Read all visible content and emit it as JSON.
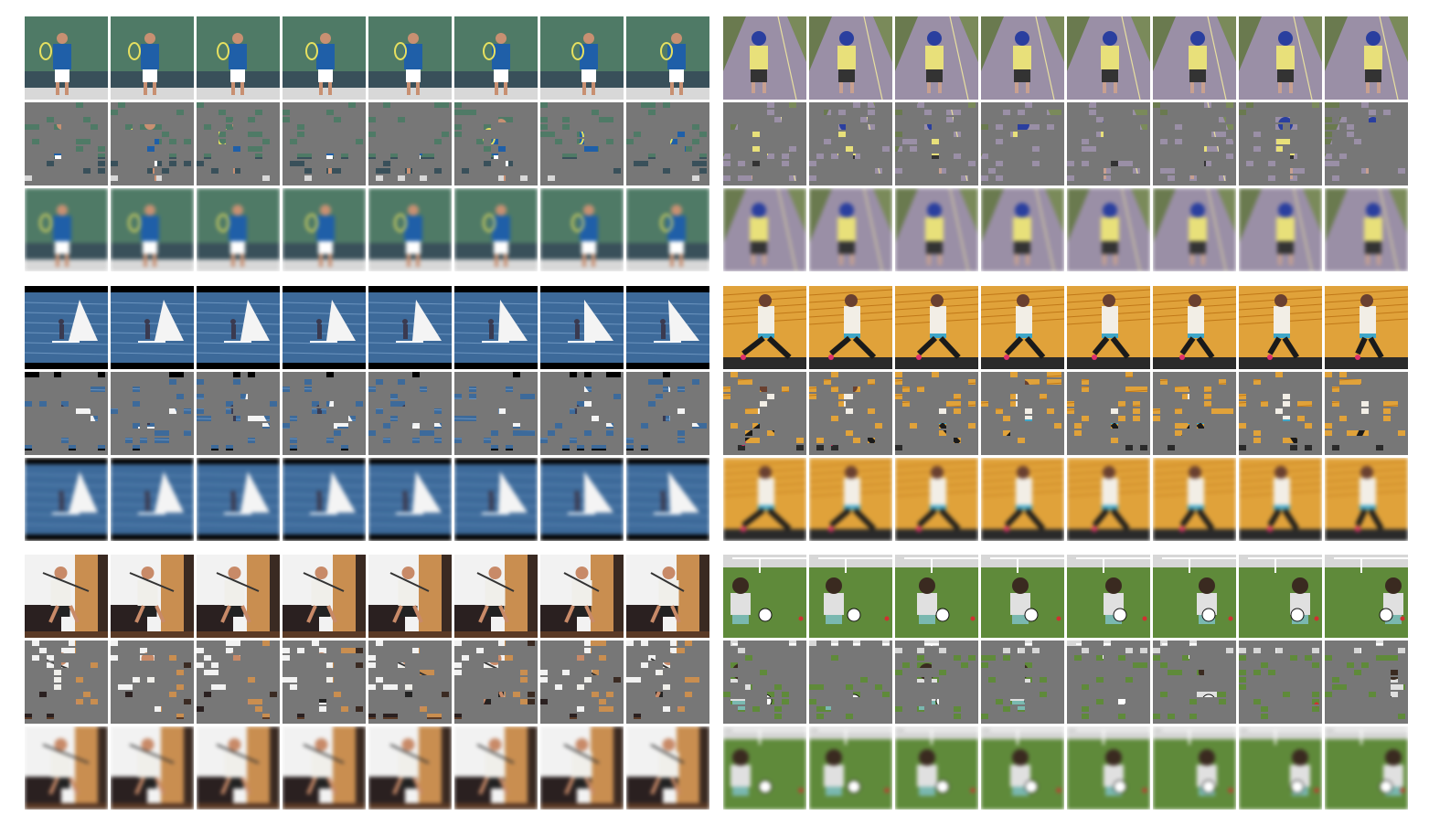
{
  "figure": {
    "rows_per_example": [
      "original",
      "masked",
      "reconstruction"
    ],
    "frames_per_row": 8,
    "mask_color": "#777777"
  },
  "examples": [
    {
      "id": "tennis",
      "sky": "#4f7a66",
      "ground": "#d8d8d8",
      "subject": "#1f5fa8",
      "skin": "#c89072",
      "accent": "#e6e060"
    },
    {
      "id": "runner",
      "sky": "#6a7a4f",
      "ground": "#9a8fa6",
      "subject": "#e8e07a",
      "skin": "#2a3f9f",
      "accent": "#333333"
    },
    {
      "id": "windsurf",
      "sky": "#000000",
      "ground": "#3d6a9a",
      "subject": "#f4f4f4",
      "skin": "#3a3a50",
      "accent": "#8ab0d8"
    },
    {
      "id": "lunge",
      "sky": "#e0a23a",
      "ground": "#d48a20",
      "subject": "#f2eee6",
      "skin": "#1a1a1a",
      "accent": "#3fa6c8"
    },
    {
      "id": "racket-room",
      "sky": "#f2f2f2",
      "ground": "#5a3a26",
      "subject": "#f0efea",
      "skin": "#c98e50",
      "accent": "#222222"
    },
    {
      "id": "soccer-kid",
      "sky": "#d7d7d7",
      "ground": "#5f8a3a",
      "subject": "#e0e0e0",
      "skin": "#3a2a20",
      "accent": "#ffffff"
    }
  ]
}
